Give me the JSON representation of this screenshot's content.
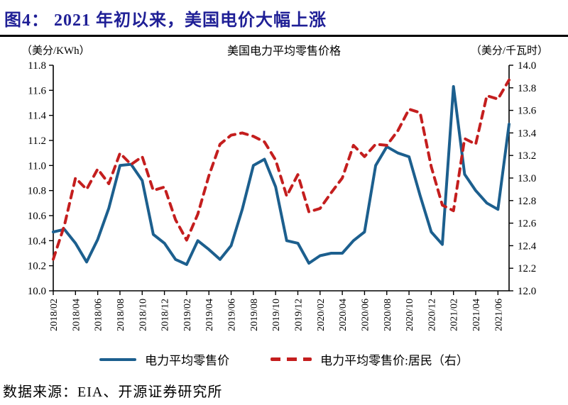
{
  "header": {
    "title": "图4：  2021 年初以来，美国电价大幅上涨"
  },
  "footer": {
    "source": "数据来源：EIA、开源证券研究所"
  },
  "colors": {
    "accent_blue": "#1c5f8e",
    "accent_red": "#c41e1e",
    "title_navy": "#1f1f96",
    "axis_black": "#000000"
  },
  "chart_data": {
    "type": "line",
    "title": "美国电力平均零售价格",
    "left_axis_unit": "（美分/KWh）",
    "right_axis_unit": "（美分/千瓦时）",
    "left_axis": {
      "min": 10.0,
      "max": 11.8,
      "tick_step": 0.2,
      "tick_labels": [
        "10.0",
        "10.2",
        "10.4",
        "10.6",
        "10.8",
        "11.0",
        "11.2",
        "11.4",
        "11.6",
        "11.8"
      ]
    },
    "right_axis": {
      "min": 12.0,
      "max": 14.0,
      "tick_step": 0.2,
      "tick_labels": [
        "12.0",
        "12.2",
        "12.4",
        "12.6",
        "12.8",
        "13.0",
        "13.2",
        "13.4",
        "13.6",
        "13.8",
        "14.0"
      ]
    },
    "grid": false,
    "legend_position": "bottom",
    "x": [
      "2018/02",
      "2018/03",
      "2018/04",
      "2018/05",
      "2018/06",
      "2018/07",
      "2018/08",
      "2018/09",
      "2018/10",
      "2018/11",
      "2018/12",
      "2019/01",
      "2019/02",
      "2019/03",
      "2019/04",
      "2019/05",
      "2019/06",
      "2019/07",
      "2019/08",
      "2019/09",
      "2019/10",
      "2019/11",
      "2019/12",
      "2020/01",
      "2020/02",
      "2020/03",
      "2020/04",
      "2020/05",
      "2020/06",
      "2020/07",
      "2020/08",
      "2020/09",
      "2020/10",
      "2020/11",
      "2020/12",
      "2021/01",
      "2021/02",
      "2021/03",
      "2021/04",
      "2021/05",
      "2021/06",
      "2021/07"
    ],
    "x_tick_labels": [
      "2018/02",
      "2018/04",
      "2018/06",
      "2018/08",
      "2018/10",
      "2018/12",
      "2019/02",
      "2019/04",
      "2019/06",
      "2019/08",
      "2019/10",
      "2019/12",
      "2020/02",
      "2020/04",
      "2020/06",
      "2020/08",
      "2020/10",
      "2020/12",
      "2021/02",
      "2021/04",
      "2021/06"
    ],
    "series": [
      {
        "name": "电力平均零售价",
        "axis": "left",
        "color": "#1c5f8e",
        "style": "solid",
        "values": [
          10.47,
          10.49,
          10.38,
          10.23,
          10.41,
          10.66,
          11.0,
          11.01,
          10.88,
          10.45,
          10.38,
          10.25,
          10.21,
          10.4,
          10.33,
          10.25,
          10.36,
          10.65,
          11.0,
          11.05,
          10.83,
          10.4,
          10.38,
          10.22,
          10.28,
          10.3,
          10.3,
          10.4,
          10.47,
          11.0,
          11.15,
          11.1,
          11.07,
          10.76,
          10.47,
          10.37,
          11.63,
          10.93,
          10.8,
          10.7,
          10.65,
          11.33
        ]
      },
      {
        "name": "电力平均零售价:居民（右）",
        "axis": "right",
        "color": "#c41e1e",
        "style": "dashed",
        "values": [
          12.28,
          12.58,
          13.0,
          12.9,
          13.08,
          12.95,
          13.22,
          13.12,
          13.19,
          12.89,
          12.92,
          12.63,
          12.45,
          12.68,
          13.02,
          13.3,
          13.38,
          13.4,
          13.37,
          13.32,
          13.16,
          12.84,
          13.03,
          12.7,
          12.73,
          12.87,
          13.0,
          13.29,
          13.19,
          13.3,
          13.29,
          13.42,
          13.61,
          13.58,
          13.1,
          12.76,
          12.71,
          13.35,
          13.3,
          13.73,
          13.7,
          13.87
        ]
      }
    ]
  }
}
